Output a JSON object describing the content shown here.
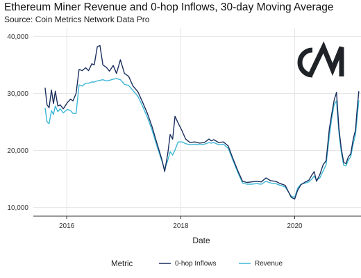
{
  "chart_data": {
    "type": "line",
    "title": "Ethereum Miner Revenue and 0-hop Inflows, 30-day Moving Average",
    "subtitle": "Source: Coin Metrics Network Data Pro",
    "xlabel": "Date",
    "ylabel": "",
    "x_ticks": [
      "2016",
      "2018",
      "2020"
    ],
    "y_ticks": [
      "10,000",
      "20,000",
      "30,000",
      "40,000"
    ],
    "ylim": [
      8500,
      41500
    ],
    "xlim": [
      "2015-06-01",
      "2021-03-01"
    ],
    "grid": true,
    "legend": {
      "title": "Metric",
      "position": "bottom"
    },
    "logo_text": "CM",
    "series": [
      {
        "name": "0-hop Inflows",
        "color": "#1b2f5e",
        "points": [
          [
            "2015-08-15",
            31000
          ],
          [
            "2015-08-28",
            28000
          ],
          [
            "2015-09-10",
            27500
          ],
          [
            "2015-09-25",
            30600
          ],
          [
            "2015-10-08",
            28200
          ],
          [
            "2015-10-20",
            30400
          ],
          [
            "2015-11-05",
            27800
          ],
          [
            "2015-11-20",
            28000
          ],
          [
            "2015-12-10",
            27300
          ],
          [
            "2016-01-05",
            28400
          ],
          [
            "2016-01-25",
            29000
          ],
          [
            "2016-02-10",
            28700
          ],
          [
            "2016-03-01",
            30000
          ],
          [
            "2016-03-20",
            34200
          ],
          [
            "2016-04-10",
            34000
          ],
          [
            "2016-05-01",
            34500
          ],
          [
            "2016-05-20",
            34000
          ],
          [
            "2016-06-10",
            35200
          ],
          [
            "2016-06-25",
            35000
          ],
          [
            "2016-07-15",
            38200
          ],
          [
            "2016-08-01",
            38400
          ],
          [
            "2016-08-20",
            35000
          ],
          [
            "2016-09-10",
            34600
          ],
          [
            "2016-10-01",
            33900
          ],
          [
            "2016-10-25",
            34900
          ],
          [
            "2016-11-15",
            33500
          ],
          [
            "2016-12-10",
            35900
          ],
          [
            "2017-01-05",
            33500
          ],
          [
            "2017-02-01",
            33000
          ],
          [
            "2017-03-01",
            31300
          ],
          [
            "2017-04-01",
            30300
          ],
          [
            "2017-05-01",
            28500
          ],
          [
            "2017-06-01",
            26500
          ],
          [
            "2017-07-01",
            24200
          ],
          [
            "2017-08-01",
            21300
          ],
          [
            "2017-09-01",
            18500
          ],
          [
            "2017-09-20",
            16300
          ],
          [
            "2017-10-10",
            19500
          ],
          [
            "2017-10-25",
            22800
          ],
          [
            "2017-11-10",
            22000
          ],
          [
            "2017-11-25",
            26000
          ],
          [
            "2017-12-15",
            24800
          ],
          [
            "2018-01-10",
            23400
          ],
          [
            "2018-02-01",
            22000
          ],
          [
            "2018-03-01",
            21400
          ],
          [
            "2018-04-01",
            21500
          ],
          [
            "2018-05-01",
            21300
          ],
          [
            "2018-06-01",
            21400
          ],
          [
            "2018-07-01",
            22000
          ],
          [
            "2018-07-15",
            21700
          ],
          [
            "2018-08-01",
            21900
          ],
          [
            "2018-09-01",
            21400
          ],
          [
            "2018-10-01",
            21500
          ],
          [
            "2018-11-01",
            20800
          ],
          [
            "2018-12-01",
            18600
          ],
          [
            "2019-01-01",
            16500
          ],
          [
            "2019-02-01",
            14600
          ],
          [
            "2019-03-01",
            14400
          ],
          [
            "2019-04-01",
            14500
          ],
          [
            "2019-05-01",
            14600
          ],
          [
            "2019-06-01",
            14500
          ],
          [
            "2019-07-01",
            15200
          ],
          [
            "2019-08-01",
            14700
          ],
          [
            "2019-09-01",
            14600
          ],
          [
            "2019-10-01",
            14200
          ],
          [
            "2019-11-01",
            13900
          ],
          [
            "2019-12-10",
            11800
          ],
          [
            "2020-01-01",
            11500
          ],
          [
            "2020-01-20",
            13000
          ],
          [
            "2020-02-10",
            14000
          ],
          [
            "2020-03-10",
            14500
          ],
          [
            "2020-04-01",
            14800
          ],
          [
            "2020-04-20",
            15700
          ],
          [
            "2020-05-05",
            16300
          ],
          [
            "2020-05-20",
            14600
          ],
          [
            "2020-06-10",
            15800
          ],
          [
            "2020-07-01",
            17500
          ],
          [
            "2020-07-20",
            18200
          ],
          [
            "2020-08-10",
            23800
          ],
          [
            "2020-08-25",
            26300
          ],
          [
            "2020-09-10",
            28800
          ],
          [
            "2020-09-25",
            30200
          ],
          [
            "2020-10-10",
            24000
          ],
          [
            "2020-10-25",
            20400
          ],
          [
            "2020-11-10",
            17900
          ],
          [
            "2020-11-25",
            17700
          ],
          [
            "2020-12-10",
            18900
          ],
          [
            "2020-12-25",
            19400
          ],
          [
            "2021-01-10",
            22000
          ],
          [
            "2021-01-25",
            23600
          ],
          [
            "2021-02-05",
            27500
          ],
          [
            "2021-02-15",
            30400
          ]
        ]
      },
      {
        "name": "Revenue",
        "color": "#3bb7d6",
        "points": [
          [
            "2015-08-15",
            27500
          ],
          [
            "2015-08-28",
            25000
          ],
          [
            "2015-09-10",
            24700
          ],
          [
            "2015-09-25",
            27000
          ],
          [
            "2015-10-08",
            26300
          ],
          [
            "2015-10-20",
            27800
          ],
          [
            "2015-11-05",
            26800
          ],
          [
            "2015-11-20",
            27300
          ],
          [
            "2015-12-10",
            26600
          ],
          [
            "2016-01-05",
            27200
          ],
          [
            "2016-01-25",
            27000
          ],
          [
            "2016-02-10",
            26500
          ],
          [
            "2016-03-01",
            26500
          ],
          [
            "2016-03-20",
            31500
          ],
          [
            "2016-04-10",
            31300
          ],
          [
            "2016-05-01",
            31800
          ],
          [
            "2016-05-20",
            31800
          ],
          [
            "2016-06-10",
            32000
          ],
          [
            "2016-06-25",
            32000
          ],
          [
            "2016-07-15",
            32200
          ],
          [
            "2016-08-01",
            32300
          ],
          [
            "2016-08-20",
            32400
          ],
          [
            "2016-09-10",
            32200
          ],
          [
            "2016-10-01",
            32300
          ],
          [
            "2016-10-25",
            32500
          ],
          [
            "2016-11-15",
            32600
          ],
          [
            "2016-12-10",
            32400
          ],
          [
            "2017-01-05",
            31600
          ],
          [
            "2017-02-01",
            31400
          ],
          [
            "2017-03-01",
            30500
          ],
          [
            "2017-04-01",
            29500
          ],
          [
            "2017-05-01",
            27800
          ],
          [
            "2017-06-01",
            25800
          ],
          [
            "2017-07-01",
            23600
          ],
          [
            "2017-08-01",
            20800
          ],
          [
            "2017-09-01",
            18200
          ],
          [
            "2017-09-20",
            16700
          ],
          [
            "2017-10-10",
            18300
          ],
          [
            "2017-10-25",
            19800
          ],
          [
            "2017-11-10",
            19200
          ],
          [
            "2017-11-25",
            20100
          ],
          [
            "2017-12-15",
            21500
          ],
          [
            "2018-01-10",
            21500
          ],
          [
            "2018-02-01",
            21200
          ],
          [
            "2018-03-01",
            21000
          ],
          [
            "2018-04-01",
            21100
          ],
          [
            "2018-05-01",
            21000
          ],
          [
            "2018-06-01",
            21100
          ],
          [
            "2018-07-01",
            21400
          ],
          [
            "2018-07-15",
            21300
          ],
          [
            "2018-08-01",
            21400
          ],
          [
            "2018-09-01",
            21000
          ],
          [
            "2018-10-01",
            21100
          ],
          [
            "2018-11-01",
            20400
          ],
          [
            "2018-12-01",
            18300
          ],
          [
            "2019-01-01",
            16200
          ],
          [
            "2019-02-01",
            14300
          ],
          [
            "2019-03-01",
            14100
          ],
          [
            "2019-04-01",
            14100
          ],
          [
            "2019-05-01",
            14200
          ],
          [
            "2019-06-01",
            14100
          ],
          [
            "2019-07-01",
            14600
          ],
          [
            "2019-08-01",
            14300
          ],
          [
            "2019-09-01",
            14200
          ],
          [
            "2019-10-01",
            13900
          ],
          [
            "2019-11-01",
            13600
          ],
          [
            "2019-12-10",
            12000
          ],
          [
            "2020-01-01",
            11800
          ],
          [
            "2020-01-20",
            13400
          ],
          [
            "2020-02-10",
            14100
          ],
          [
            "2020-03-10",
            14300
          ],
          [
            "2020-04-01",
            14500
          ],
          [
            "2020-04-20",
            15000
          ],
          [
            "2020-05-05",
            15500
          ],
          [
            "2020-05-20",
            14800
          ],
          [
            "2020-06-10",
            15200
          ],
          [
            "2020-07-01",
            16400
          ],
          [
            "2020-07-20",
            17500
          ],
          [
            "2020-08-10",
            22500
          ],
          [
            "2020-08-25",
            25500
          ],
          [
            "2020-09-10",
            28000
          ],
          [
            "2020-09-25",
            28700
          ],
          [
            "2020-10-10",
            23200
          ],
          [
            "2020-10-25",
            19800
          ],
          [
            "2020-11-10",
            17400
          ],
          [
            "2020-11-25",
            17300
          ],
          [
            "2020-12-10",
            18300
          ],
          [
            "2020-12-25",
            18900
          ],
          [
            "2021-01-10",
            21200
          ],
          [
            "2021-01-25",
            22800
          ],
          [
            "2021-02-05",
            26000
          ],
          [
            "2021-02-15",
            28800
          ]
        ]
      }
    ]
  }
}
